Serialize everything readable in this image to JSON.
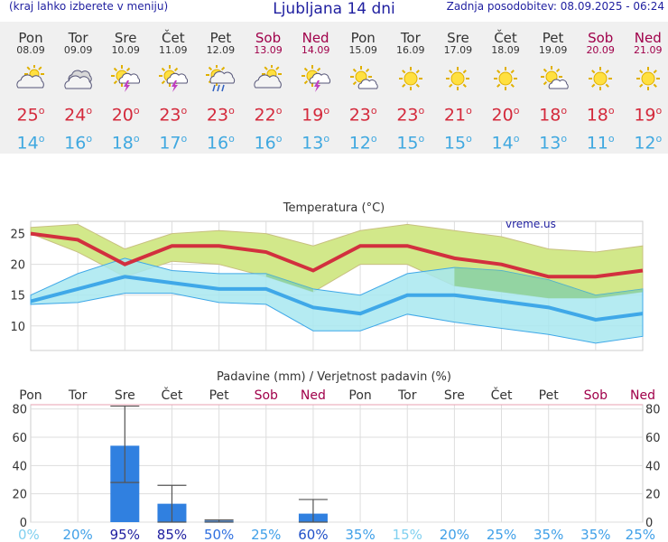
{
  "header": {
    "left": "(kraj lahko izberete v meniju)",
    "title": "Ljubljana 14 dni",
    "updated": "Zadnja posodobitev: 08.09.2025 - 06:24"
  },
  "days": [
    {
      "name": "Pon",
      "date": "08.09",
      "weekend": false,
      "icon": "partly-cloudy-icon",
      "tmax": "25",
      "tmin": "14",
      "unit": "o"
    },
    {
      "name": "Tor",
      "date": "09.09",
      "weekend": false,
      "icon": "cloudy-icon",
      "tmax": "24",
      "tmin": "16",
      "unit": "o"
    },
    {
      "name": "Sre",
      "date": "10.09",
      "weekend": false,
      "icon": "thunderstorm-sun-icon",
      "tmax": "20",
      "tmin": "18",
      "unit": "o"
    },
    {
      "name": "Čet",
      "date": "11.09",
      "weekend": false,
      "icon": "thunderstorm-sun-icon",
      "tmax": "23",
      "tmin": "17",
      "unit": "o"
    },
    {
      "name": "Pet",
      "date": "12.09",
      "weekend": false,
      "icon": "sun-rain-icon",
      "tmax": "23",
      "tmin": "16",
      "unit": "o"
    },
    {
      "name": "Sob",
      "date": "13.09",
      "weekend": true,
      "icon": "partly-cloudy-icon",
      "tmax": "22",
      "tmin": "16",
      "unit": "o"
    },
    {
      "name": "Ned",
      "date": "14.09",
      "weekend": true,
      "icon": "thunderstorm-sun-icon",
      "tmax": "19",
      "tmin": "13",
      "unit": "o"
    },
    {
      "name": "Pon",
      "date": "15.09",
      "weekend": false,
      "icon": "sun-small-cloud-icon",
      "tmax": "23",
      "tmin": "12",
      "unit": "o"
    },
    {
      "name": "Tor",
      "date": "16.09",
      "weekend": false,
      "icon": "sun-icon",
      "tmax": "23",
      "tmin": "15",
      "unit": "o"
    },
    {
      "name": "Sre",
      "date": "17.09",
      "weekend": false,
      "icon": "sun-icon",
      "tmax": "21",
      "tmin": "15",
      "unit": "o"
    },
    {
      "name": "Čet",
      "date": "18.09",
      "weekend": false,
      "icon": "sun-icon",
      "tmax": "20",
      "tmin": "14",
      "unit": "o"
    },
    {
      "name": "Pet",
      "date": "19.09",
      "weekend": false,
      "icon": "sun-small-cloud-icon",
      "tmax": "18",
      "tmin": "13",
      "unit": "o"
    },
    {
      "name": "Sob",
      "date": "20.09",
      "weekend": true,
      "icon": "sun-icon",
      "tmax": "18",
      "tmin": "11",
      "unit": "o"
    },
    {
      "name": "Ned",
      "date": "21.09",
      "weekend": true,
      "icon": "sun-icon",
      "tmax": "19",
      "tmin": "12",
      "unit": "o"
    }
  ],
  "colors": {
    "max_line": "#d2303e",
    "max_band": "#d2e88a",
    "min_line": "#3fa8e8",
    "min_band": "#a8e8f0",
    "overlap": "#88cc88",
    "bar": "#3080e0",
    "weekend": "#a0004a",
    "title": "#1f1fa0"
  },
  "chart_data": [
    {
      "type": "line",
      "title": "Temperatura (°C)",
      "watermark": "vreme.us",
      "categories": [
        "Pon",
        "Tor",
        "Sre",
        "Čet",
        "Pet",
        "Sob",
        "Ned",
        "Pon",
        "Tor",
        "Sre",
        "Čet",
        "Pet",
        "Sob",
        "Ned"
      ],
      "ylim": [
        6,
        27
      ],
      "yticks": [
        10,
        15,
        20,
        25
      ],
      "grid": true,
      "series": [
        {
          "name": "max",
          "values": [
            25,
            24,
            20,
            23,
            23,
            22,
            19,
            23,
            23,
            21,
            20,
            18,
            18,
            19
          ]
        },
        {
          "name": "max_upper",
          "values": [
            26,
            26.5,
            22.5,
            25,
            25.5,
            25,
            23,
            25.5,
            26.5,
            25.5,
            24.5,
            22.5,
            22,
            23
          ]
        },
        {
          "name": "max_lower",
          "values": [
            25,
            22,
            18,
            20.5,
            20,
            18,
            15.5,
            20,
            20,
            16.5,
            15.5,
            14.5,
            14.5,
            15.5
          ]
        },
        {
          "name": "min",
          "values": [
            14,
            16,
            18,
            17,
            16,
            16,
            13,
            12,
            15,
            15,
            14,
            13,
            11,
            12
          ]
        },
        {
          "name": "min_upper",
          "values": [
            15,
            18.5,
            21,
            19,
            18.5,
            18.5,
            16,
            15,
            18.5,
            19.5,
            19,
            17.5,
            15,
            16
          ]
        },
        {
          "name": "min_lower",
          "values": [
            13.5,
            13.8,
            15.3,
            15.3,
            13.8,
            13.5,
            9.2,
            9.2,
            11.9,
            10.6,
            9.6,
            8.6,
            7.2,
            8.3
          ]
        }
      ]
    },
    {
      "type": "bar",
      "title": "Padavine (mm) / Verjetnost padavin (%)",
      "categories": [
        "Pon",
        "Tor",
        "Sre",
        "Čet",
        "Pet",
        "Sob",
        "Ned",
        "Pon",
        "Tor",
        "Sre",
        "Čet",
        "Pet",
        "Sob",
        "Ned"
      ],
      "ylim": [
        0,
        83
      ],
      "yticks": [
        0,
        20,
        40,
        60,
        80
      ],
      "values": [
        0,
        0,
        54,
        13,
        1,
        0,
        6,
        0,
        0,
        0,
        0,
        0,
        0,
        0
      ],
      "range_low": [
        0,
        0,
        28,
        0,
        0,
        0,
        0,
        0,
        0,
        0,
        0,
        0,
        0,
        0
      ],
      "range_high": [
        0,
        0,
        82,
        26,
        1.5,
        0,
        16,
        0,
        0,
        0,
        0,
        0,
        0,
        0
      ],
      "probabilities": [
        "0%",
        "20%",
        "95%",
        "85%",
        "50%",
        "25%",
        "60%",
        "35%",
        "15%",
        "20%",
        "25%",
        "35%",
        "35%",
        "25%"
      ]
    }
  ]
}
